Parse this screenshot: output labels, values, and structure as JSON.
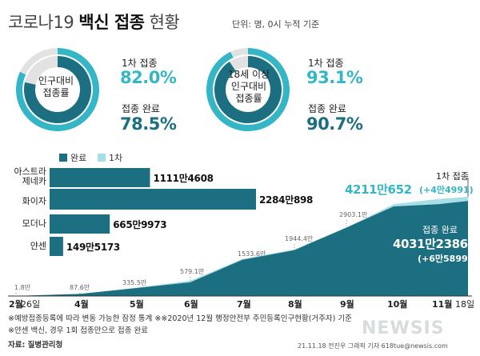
{
  "title_bold": "백신 접종",
  "title_pre": "코로나19",
  "title_post": "현황",
  "unit_note": "단위: 명, 0시 누적 기준",
  "colors": {
    "dark": "#1c6f80",
    "light": "#a7dfe6",
    "accent_light": "#35b6c6",
    "track": "#e2e2e2"
  },
  "donuts": [
    {
      "label": "인구대비\n접종률",
      "first_label": "1차 접종",
      "first_value": "82.0%",
      "first_pct": 82.0,
      "full_label": "접종 완료",
      "full_value": "78.5%",
      "full_pct": 78.5
    },
    {
      "label": "18세 이상\n인구대비\n접종률",
      "first_label": "1차 접종",
      "first_value": "93.1%",
      "first_pct": 93.1,
      "full_label": "접종 완료",
      "full_value": "90.7%",
      "full_pct": 90.7
    }
  ],
  "legend": {
    "full": "완료",
    "first": "1차"
  },
  "vaccines": [
    {
      "name": "아스트라\n제네카",
      "value": 11114608,
      "label": "1111만4608"
    },
    {
      "name": "화이자",
      "value": 22840898,
      "label": "2284만898"
    },
    {
      "name": "모더나",
      "value": 6659973,
      "label": "665만9973"
    },
    {
      "name": "얀센",
      "value": 1495173,
      "label": "149만5173"
    }
  ],
  "annotations": {
    "first_label": "1차 접종",
    "first_value": "4211만652",
    "first_delta": "(+4만4991)",
    "full_label": "접종 완료",
    "full_value": "4031만2386",
    "full_delta": "(+6만5899)"
  },
  "point_labels": [
    "1.8만",
    "87.6만",
    "335.5만",
    "579.1만",
    "1533.6만",
    "1944.4만",
    "2903.1만"
  ],
  "months": [
    "2월",
    "26일",
    "4월",
    "5월",
    "6월",
    "7월",
    "8월",
    "9월",
    "10월",
    "11월",
    "18일"
  ],
  "footnotes": [
    "※예방접종등록에 따라 변동 가능한 잠정 통계  ※※2020년 12월 행정안전부 주민등록인구현황(거주자) 기준",
    "※얀센 백신, 경우 1회 접종만으로 접종 완료"
  ],
  "source": "자료: 질병관리청",
  "credit": "21.11.18 전진우 그래픽 기자 618tue@newsis.com",
  "watermark": "NEWSIS",
  "chart_data": [
    {
      "type": "bar",
      "title": "",
      "categories": [
        "아스트라제네카",
        "화이자",
        "모더나",
        "얀센"
      ],
      "values": [
        11114608,
        22840898,
        6659973,
        1495173
      ]
    },
    {
      "type": "area",
      "title": "",
      "x": [
        "2021-02-26",
        "2021-04-01",
        "2021-05-01",
        "2021-06-01",
        "2021-07-01",
        "2021-08-01",
        "2021-09-01",
        "2021-10-01",
        "2021-11-01",
        "2021-11-18"
      ],
      "series": [
        {
          "name": "1차",
          "values": [
            19000,
            900000,
            3500000,
            6500000,
            15700000,
            19800000,
            29000000,
            39000000,
            41200000,
            42110652
          ]
        },
        {
          "name": "완료",
          "values": [
            18000,
            876000,
            3355000,
            5791000,
            15336000,
            19444000,
            29031000,
            38000000,
            39000000,
            40312386
          ]
        }
      ],
      "point_labels": [
        "1.8만",
        "87.6만",
        "335.5만",
        "579.1만",
        "1533.6만",
        "1944.4만",
        "2903.1만"
      ]
    }
  ]
}
